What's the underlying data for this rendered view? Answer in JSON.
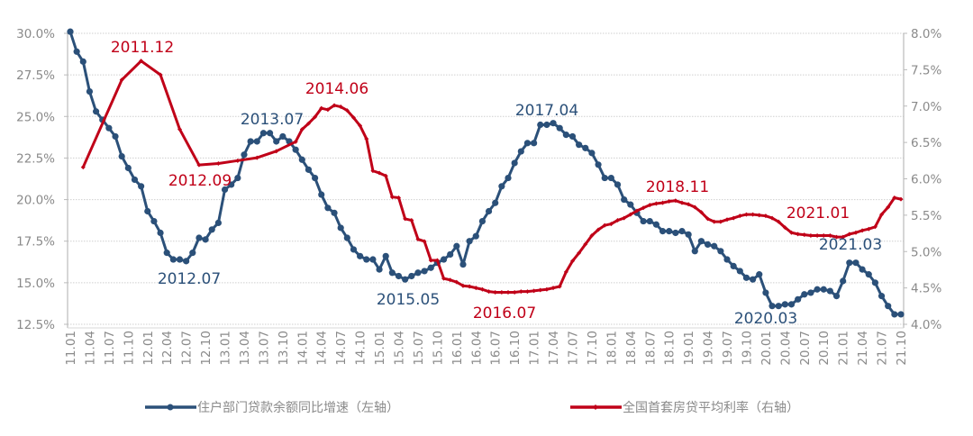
{
  "chart_data": {
    "type": "line",
    "title": "",
    "x_tick_labels": [
      "11.01",
      "11.04",
      "11.07",
      "11.10",
      "12.01",
      "12.04",
      "12.07",
      "12.10",
      "13.01",
      "13.04",
      "13.07",
      "13.10",
      "14.01",
      "14.04",
      "14.07",
      "14.10",
      "15.01",
      "15.04",
      "15.07",
      "15.10",
      "16.01",
      "16.04",
      "16.07",
      "16.10",
      "17.01",
      "17.04",
      "17.07",
      "17.10",
      "18.01",
      "18.04",
      "18.07",
      "18.10",
      "19.01",
      "19.04",
      "19.07",
      "19.10",
      "20.01",
      "20.04",
      "20.07",
      "20.10",
      "21.01",
      "21.04",
      "21.07",
      "21.10"
    ],
    "x_range": [
      "2011.01",
      "2021.10"
    ],
    "y_left": {
      "ylim": [
        12.5,
        30.0
      ],
      "ticks": [
        "12.5%",
        "15.0%",
        "17.5%",
        "20.0%",
        "22.5%",
        "25.0%",
        "27.5%",
        "30.0%"
      ]
    },
    "y_right": {
      "ylim": [
        4.0,
        8.0
      ],
      "ticks": [
        "4.0%",
        "4.5%",
        "5.0%",
        "5.5%",
        "6.0%",
        "6.5%",
        "7.0%",
        "7.5%",
        "8.0%"
      ]
    },
    "grid": true,
    "legend_position": "bottom",
    "series": [
      {
        "name": "住户部门贷款余额同比增速（左轴）",
        "axis": "left",
        "color": "#2b5079",
        "start": "2011.01",
        "frequency": "monthly",
        "values": [
          30.1,
          28.9,
          28.3,
          26.5,
          25.3,
          24.8,
          24.3,
          23.8,
          22.6,
          21.9,
          21.2,
          20.8,
          19.3,
          18.7,
          18.0,
          16.8,
          16.4,
          16.4,
          16.3,
          16.8,
          17.7,
          17.6,
          18.2,
          18.6,
          20.6,
          20.9,
          21.3,
          22.7,
          23.5,
          23.5,
          24.0,
          24.0,
          23.5,
          23.8,
          23.5,
          23.0,
          22.4,
          21.8,
          21.3,
          20.3,
          19.5,
          19.2,
          18.3,
          17.7,
          17.0,
          16.6,
          16.4,
          16.4,
          15.8,
          16.6,
          15.6,
          15.4,
          15.2,
          15.4,
          15.6,
          15.7,
          15.9,
          16.2,
          16.4,
          16.7,
          17.2,
          16.1,
          17.5,
          17.8,
          18.7,
          19.3,
          19.8,
          20.8,
          21.3,
          22.2,
          22.9,
          23.4,
          23.4,
          24.5,
          24.5,
          24.6,
          24.3,
          23.9,
          23.8,
          23.3,
          23.1,
          22.8,
          22.1,
          21.3,
          21.3,
          20.9,
          20.0,
          19.7,
          19.2,
          18.7,
          18.7,
          18.5,
          18.1,
          18.1,
          18.0,
          18.1,
          17.9,
          16.9,
          17.5,
          17.3,
          17.2,
          16.9,
          16.4,
          16.0,
          15.7,
          15.3,
          15.2,
          15.5,
          14.4,
          13.6,
          13.6,
          13.7,
          13.7,
          14.0,
          14.3,
          14.4,
          14.6,
          14.6,
          14.5,
          14.2,
          15.1,
          16.2,
          16.2,
          15.8,
          15.5,
          15.0,
          14.2,
          13.6,
          13.1,
          13.1
        ]
      },
      {
        "name": "全国首套房贷平均利率（右轴）",
        "axis": "right",
        "color": "#c00018",
        "points": [
          [
            "2011.03",
            6.16
          ],
          [
            "2011.09",
            7.36
          ],
          [
            "2011.12",
            7.62
          ],
          [
            "2012.03",
            7.43
          ],
          [
            "2012.06",
            6.68
          ],
          [
            "2012.09",
            6.19
          ],
          [
            "2012.12",
            6.21
          ],
          [
            "2013.03",
            6.25
          ],
          [
            "2013.06",
            6.29
          ],
          [
            "2013.09",
            6.38
          ],
          [
            "2013.12",
            6.51
          ],
          [
            "2014.01",
            6.68
          ],
          [
            "2014.02",
            6.76
          ],
          [
            "2014.03",
            6.85
          ],
          [
            "2014.04",
            6.97
          ],
          [
            "2014.05",
            6.95
          ],
          [
            "2014.06",
            7.01
          ],
          [
            "2014.07",
            6.99
          ],
          [
            "2014.08",
            6.94
          ],
          [
            "2014.09",
            6.84
          ],
          [
            "2014.10",
            6.73
          ],
          [
            "2014.11",
            6.55
          ],
          [
            "2014.12",
            6.11
          ],
          [
            "2015.01",
            6.08
          ],
          [
            "2015.02",
            6.04
          ],
          [
            "2015.03",
            5.75
          ],
          [
            "2015.04",
            5.74
          ],
          [
            "2015.05",
            5.45
          ],
          [
            "2015.06",
            5.43
          ],
          [
            "2015.07",
            5.17
          ],
          [
            "2015.08",
            5.14
          ],
          [
            "2015.09",
            4.88
          ],
          [
            "2015.10",
            4.88
          ],
          [
            "2015.11",
            4.63
          ],
          [
            "2015.12",
            4.61
          ],
          [
            "2016.01",
            4.58
          ],
          [
            "2016.02",
            4.53
          ],
          [
            "2016.03",
            4.52
          ],
          [
            "2016.04",
            4.5
          ],
          [
            "2016.05",
            4.48
          ],
          [
            "2016.06",
            4.45
          ],
          [
            "2016.07",
            4.44
          ],
          [
            "2016.08",
            4.44
          ],
          [
            "2016.09",
            4.44
          ],
          [
            "2016.10",
            4.44
          ],
          [
            "2016.11",
            4.45
          ],
          [
            "2016.12",
            4.45
          ],
          [
            "2017.01",
            4.46
          ],
          [
            "2017.02",
            4.47
          ],
          [
            "2017.03",
            4.48
          ],
          [
            "2017.04",
            4.5
          ],
          [
            "2017.05",
            4.52
          ],
          [
            "2017.06",
            4.72
          ],
          [
            "2017.07",
            4.87
          ],
          [
            "2017.08",
            4.98
          ],
          [
            "2017.09",
            5.1
          ],
          [
            "2017.10",
            5.22
          ],
          [
            "2017.11",
            5.3
          ],
          [
            "2017.12",
            5.36
          ],
          [
            "2018.01",
            5.38
          ],
          [
            "2018.02",
            5.43
          ],
          [
            "2018.03",
            5.46
          ],
          [
            "2018.04",
            5.51
          ],
          [
            "2018.05",
            5.56
          ],
          [
            "2018.06",
            5.6
          ],
          [
            "2018.07",
            5.64
          ],
          [
            "2018.08",
            5.66
          ],
          [
            "2018.09",
            5.67
          ],
          [
            "2018.10",
            5.69
          ],
          [
            "2018.11",
            5.7
          ],
          [
            "2018.12",
            5.67
          ],
          [
            "2019.01",
            5.65
          ],
          [
            "2019.02",
            5.61
          ],
          [
            "2019.03",
            5.54
          ],
          [
            "2019.04",
            5.45
          ],
          [
            "2019.05",
            5.41
          ],
          [
            "2019.06",
            5.41
          ],
          [
            "2019.07",
            5.44
          ],
          [
            "2019.08",
            5.46
          ],
          [
            "2019.09",
            5.49
          ],
          [
            "2019.10",
            5.51
          ],
          [
            "2019.11",
            5.51
          ],
          [
            "2019.12",
            5.5
          ],
          [
            "2020.01",
            5.49
          ],
          [
            "2020.02",
            5.46
          ],
          [
            "2020.03",
            5.41
          ],
          [
            "2020.04",
            5.33
          ],
          [
            "2020.05",
            5.26
          ],
          [
            "2020.06",
            5.24
          ],
          [
            "2020.07",
            5.23
          ],
          [
            "2020.08",
            5.22
          ],
          [
            "2020.09",
            5.22
          ],
          [
            "2020.10",
            5.22
          ],
          [
            "2020.11",
            5.22
          ],
          [
            "2020.12",
            5.2
          ],
          [
            "2021.01",
            5.2
          ],
          [
            "2021.02",
            5.24
          ],
          [
            "2021.03",
            5.26
          ],
          [
            "2021.04",
            5.29
          ],
          [
            "2021.05",
            5.31
          ],
          [
            "2021.06",
            5.34
          ],
          [
            "2021.07",
            5.51
          ],
          [
            "2021.08",
            5.61
          ],
          [
            "2021.09",
            5.74
          ],
          [
            "2021.10",
            5.72
          ]
        ]
      }
    ],
    "annotations": [
      {
        "text": "2011.12",
        "series": "right",
        "color": "#c00018"
      },
      {
        "text": "2012.09",
        "series": "right",
        "color": "#c00018"
      },
      {
        "text": "2014.06",
        "series": "right",
        "color": "#c00018"
      },
      {
        "text": "2016.07",
        "series": "right",
        "color": "#c00018"
      },
      {
        "text": "2018.11",
        "series": "right",
        "color": "#c00018"
      },
      {
        "text": "2021.01",
        "series": "right",
        "color": "#c00018"
      },
      {
        "text": "2012.07",
        "series": "left",
        "color": "#2b5079"
      },
      {
        "text": "2013.07",
        "series": "left",
        "color": "#2b5079"
      },
      {
        "text": "2015.05",
        "series": "left",
        "color": "#2b5079"
      },
      {
        "text": "2017.04",
        "series": "left",
        "color": "#2b5079"
      },
      {
        "text": "2020.03",
        "series": "left",
        "color": "#2b5079"
      },
      {
        "text": "2021.03",
        "series": "left",
        "color": "#2b5079"
      }
    ]
  }
}
